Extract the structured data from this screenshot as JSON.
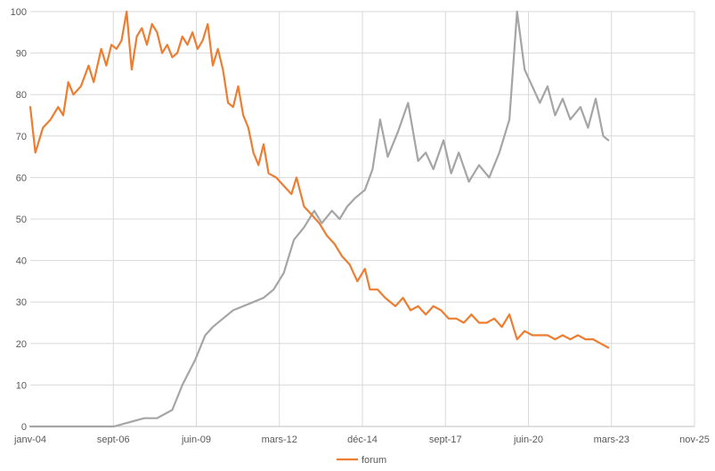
{
  "chart_data": {
    "type": "line",
    "title": "",
    "xlabel": "",
    "ylabel": "",
    "xlim": [
      "2004-01",
      "2025-11"
    ],
    "ylim": [
      0,
      100
    ],
    "x_tick_labels": [
      "janv-04",
      "sept-06",
      "juin-09",
      "mars-12",
      "déc-14",
      "sept-17",
      "juin-20",
      "mars-23",
      "nov-25"
    ],
    "y_tick_labels": [
      "0",
      "10",
      "20",
      "30",
      "40",
      "50",
      "60",
      "70",
      "80",
      "90",
      "100"
    ],
    "grid": "vertical and horizontal",
    "legend": {
      "placement": "bottom",
      "entries": [
        "forum"
      ]
    },
    "series": [
      {
        "name": "forum",
        "color": "#ED7D31",
        "points": [
          [
            "2004-01",
            77
          ],
          [
            "2004-03",
            66
          ],
          [
            "2004-06",
            72
          ],
          [
            "2004-09",
            74
          ],
          [
            "2004-12",
            77
          ],
          [
            "2005-02",
            75
          ],
          [
            "2005-04",
            83
          ],
          [
            "2005-06",
            80
          ],
          [
            "2005-09",
            82
          ],
          [
            "2005-12",
            87
          ],
          [
            "2006-02",
            83
          ],
          [
            "2006-05",
            91
          ],
          [
            "2006-07",
            87
          ],
          [
            "2006-09",
            92
          ],
          [
            "2006-11",
            91
          ],
          [
            "2007-01",
            93
          ],
          [
            "2007-03",
            100
          ],
          [
            "2007-05",
            86
          ],
          [
            "2007-07",
            94
          ],
          [
            "2007-09",
            96
          ],
          [
            "2007-11",
            92
          ],
          [
            "2008-01",
            97
          ],
          [
            "2008-03",
            95
          ],
          [
            "2008-05",
            90
          ],
          [
            "2008-07",
            92
          ],
          [
            "2008-09",
            89
          ],
          [
            "2008-11",
            90
          ],
          [
            "2009-01",
            94
          ],
          [
            "2009-03",
            92
          ],
          [
            "2009-05",
            95
          ],
          [
            "2009-07",
            91
          ],
          [
            "2009-09",
            93
          ],
          [
            "2009-11",
            97
          ],
          [
            "2010-01",
            87
          ],
          [
            "2010-03",
            91
          ],
          [
            "2010-05",
            86
          ],
          [
            "2010-07",
            78
          ],
          [
            "2010-09",
            77
          ],
          [
            "2010-11",
            82
          ],
          [
            "2011-01",
            75
          ],
          [
            "2011-03",
            72
          ],
          [
            "2011-05",
            66
          ],
          [
            "2011-07",
            63
          ],
          [
            "2011-09",
            68
          ],
          [
            "2011-11",
            61
          ],
          [
            "2012-02",
            60
          ],
          [
            "2012-05",
            58
          ],
          [
            "2012-08",
            56
          ],
          [
            "2012-10",
            60
          ],
          [
            "2013-01",
            53
          ],
          [
            "2013-04",
            51
          ],
          [
            "2013-07",
            49
          ],
          [
            "2013-10",
            46
          ],
          [
            "2014-01",
            44
          ],
          [
            "2014-04",
            41
          ],
          [
            "2014-07",
            39
          ],
          [
            "2014-10",
            35
          ],
          [
            "2015-01",
            38
          ],
          [
            "2015-03",
            33
          ],
          [
            "2015-06",
            33
          ],
          [
            "2015-09",
            31
          ],
          [
            "2016-01",
            29
          ],
          [
            "2016-04",
            31
          ],
          [
            "2016-07",
            28
          ],
          [
            "2016-10",
            29
          ],
          [
            "2017-01",
            27
          ],
          [
            "2017-04",
            29
          ],
          [
            "2017-07",
            28
          ],
          [
            "2017-10",
            26
          ],
          [
            "2018-01",
            26
          ],
          [
            "2018-04",
            25
          ],
          [
            "2018-07",
            27
          ],
          [
            "2018-10",
            25
          ],
          [
            "2019-01",
            25
          ],
          [
            "2019-04",
            26
          ],
          [
            "2019-07",
            24
          ],
          [
            "2019-10",
            27
          ],
          [
            "2020-01",
            21
          ],
          [
            "2020-04",
            23
          ],
          [
            "2020-07",
            22
          ],
          [
            "2020-10",
            22
          ],
          [
            "2021-01",
            22
          ],
          [
            "2021-04",
            21
          ],
          [
            "2021-07",
            22
          ],
          [
            "2021-10",
            21
          ],
          [
            "2022-01",
            22
          ],
          [
            "2022-04",
            21
          ],
          [
            "2022-07",
            21
          ],
          [
            "2022-10",
            20
          ],
          [
            "2023-01",
            19
          ]
        ]
      },
      {
        "name": "",
        "color": "#A5A5A5",
        "points": [
          [
            "2004-01",
            0
          ],
          [
            "2006-01",
            0
          ],
          [
            "2006-10",
            0
          ],
          [
            "2007-04",
            1
          ],
          [
            "2007-10",
            2
          ],
          [
            "2008-03",
            2
          ],
          [
            "2008-09",
            4
          ],
          [
            "2009-01",
            10
          ],
          [
            "2009-06",
            16
          ],
          [
            "2009-10",
            22
          ],
          [
            "2010-01",
            24
          ],
          [
            "2010-05",
            26
          ],
          [
            "2010-09",
            28
          ],
          [
            "2011-01",
            29
          ],
          [
            "2011-05",
            30
          ],
          [
            "2011-09",
            31
          ],
          [
            "2012-01",
            33
          ],
          [
            "2012-05",
            37
          ],
          [
            "2012-09",
            45
          ],
          [
            "2013-01",
            48
          ],
          [
            "2013-05",
            52
          ],
          [
            "2013-08",
            49
          ],
          [
            "2013-12",
            52
          ],
          [
            "2014-03",
            50
          ],
          [
            "2014-06",
            53
          ],
          [
            "2014-09",
            55
          ],
          [
            "2015-01",
            57
          ],
          [
            "2015-04",
            62
          ],
          [
            "2015-07",
            74
          ],
          [
            "2015-10",
            65
          ],
          [
            "2016-02",
            71
          ],
          [
            "2016-06",
            78
          ],
          [
            "2016-10",
            64
          ],
          [
            "2017-01",
            66
          ],
          [
            "2017-04",
            62
          ],
          [
            "2017-08",
            69
          ],
          [
            "2017-11",
            61
          ],
          [
            "2018-02",
            66
          ],
          [
            "2018-06",
            59
          ],
          [
            "2018-10",
            63
          ],
          [
            "2019-02",
            60
          ],
          [
            "2019-06",
            66
          ],
          [
            "2019-10",
            74
          ],
          [
            "2020-01",
            100
          ],
          [
            "2020-04",
            86
          ],
          [
            "2020-07",
            82
          ],
          [
            "2020-10",
            78
          ],
          [
            "2021-01",
            82
          ],
          [
            "2021-04",
            75
          ],
          [
            "2021-07",
            79
          ],
          [
            "2021-10",
            74
          ],
          [
            "2022-02",
            77
          ],
          [
            "2022-05",
            72
          ],
          [
            "2022-08",
            79
          ],
          [
            "2022-11",
            70
          ],
          [
            "2023-01",
            69
          ]
        ]
      }
    ]
  }
}
